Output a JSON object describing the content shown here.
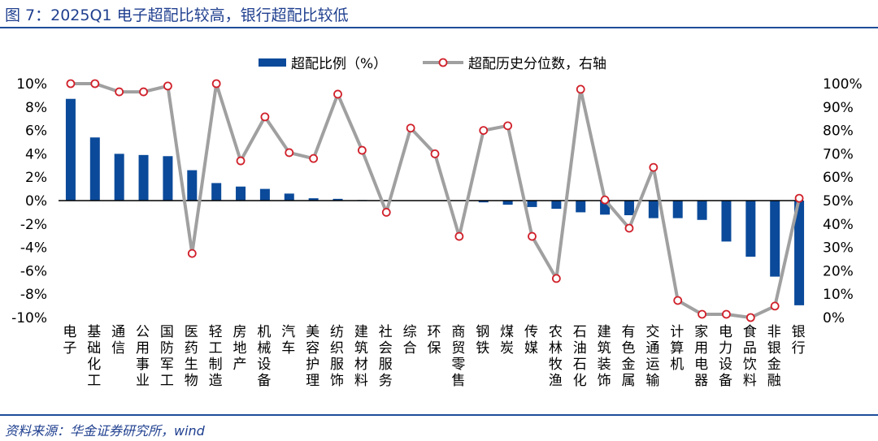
{
  "title": "图 7：2025Q1 电子超配比较高，银行超配比较低",
  "source": "资料来源：华金证券研究所，wind",
  "colors": {
    "bar": "#0b4a9a",
    "line": "#a0a0a0",
    "marker": "#d0202a"
  },
  "chart_data": {
    "type": "bar+line",
    "categories": [
      "电子",
      "基础化工",
      "通信",
      "公用事业",
      "国防军工",
      "医药生物",
      "轻工制造",
      "房地产",
      "机械设备",
      "汽车",
      "美容护理",
      "纺织服饰",
      "建筑材料",
      "社会服务",
      "综合",
      "环保",
      "商贸零售",
      "钢铁",
      "煤炭",
      "传媒",
      "农林牧渔",
      "石油石化",
      "建筑装饰",
      "有色金属",
      "交通运输",
      "计算机",
      "家用电器",
      "电力设备",
      "食品饮料",
      "非银金融",
      "银行"
    ],
    "series": [
      {
        "name": "超配比例（%）",
        "axis": "left",
        "type": "bar",
        "values": [
          8.7,
          5.4,
          4.0,
          3.9,
          3.8,
          2.6,
          1.5,
          1.2,
          1.0,
          0.6,
          0.2,
          0.15,
          0.05,
          0.02,
          0,
          0,
          -0.02,
          -0.15,
          -0.35,
          -0.55,
          -0.7,
          -1.0,
          -1.2,
          -1.25,
          -1.5,
          -1.5,
          -1.65,
          -3.5,
          -4.8,
          -6.5,
          -8.95
        ]
      },
      {
        "name": "超配历史分位数，右轴",
        "axis": "right",
        "type": "line",
        "values": [
          100,
          100,
          96.5,
          96.5,
          99,
          27.4,
          100,
          67,
          85.8,
          70.5,
          68,
          95.5,
          71.5,
          45,
          81,
          70,
          34.7,
          80,
          82,
          34.7,
          16.7,
          97.6,
          50.3,
          38.2,
          64.2,
          7.3,
          1.4,
          1.4,
          0,
          4.9,
          51
        ]
      }
    ],
    "left_axis": {
      "ylim": [
        -10,
        10
      ],
      "ticks": [
        "10%",
        "8%",
        "6%",
        "4%",
        "2%",
        "0%",
        "-2%",
        "-4%",
        "-6%",
        "-8%",
        "-10%"
      ]
    },
    "right_axis": {
      "ylim": [
        0,
        100
      ],
      "ticks": [
        "100%",
        "90%",
        "80%",
        "70%",
        "60%",
        "50%",
        "40%",
        "30%",
        "20%",
        "10%",
        "0%"
      ]
    },
    "legend": {
      "placement": "top-center",
      "items": [
        "超配比例（%）",
        "超配历史分位数，右轴"
      ]
    }
  }
}
